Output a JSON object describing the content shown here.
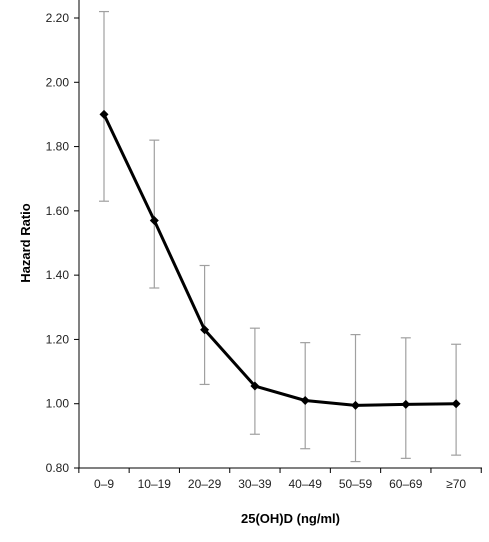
{
  "chart_data": {
    "type": "line",
    "title": "",
    "xlabel": "25(OH)D (ng/ml)",
    "ylabel": "Hazard Ratio",
    "categories": [
      "0–9",
      "10–19",
      "20–29",
      "30–39",
      "40–49",
      "50–59",
      "60–69",
      "≥70"
    ],
    "series": [
      {
        "values": [
          1.9,
          1.57,
          1.23,
          1.055,
          1.01,
          0.995,
          0.998,
          1.0
        ],
        "ci_lower": [
          1.63,
          1.36,
          1.06,
          0.905,
          0.86,
          0.82,
          0.83,
          0.84
        ],
        "ci_upper": [
          2.22,
          1.82,
          1.43,
          1.235,
          1.19,
          1.215,
          1.205,
          1.185
        ]
      }
    ],
    "ylim": [
      0.8,
      2.2
    ],
    "yticks": [
      "0.80",
      "1.00",
      "1.20",
      "1.40",
      "1.60",
      "1.80",
      "2.00",
      "2.20"
    ],
    "grid": false,
    "legend": "none",
    "colors": {
      "line": "#000000",
      "error_bar": "#a0a0a0",
      "axis": "#000000"
    }
  }
}
